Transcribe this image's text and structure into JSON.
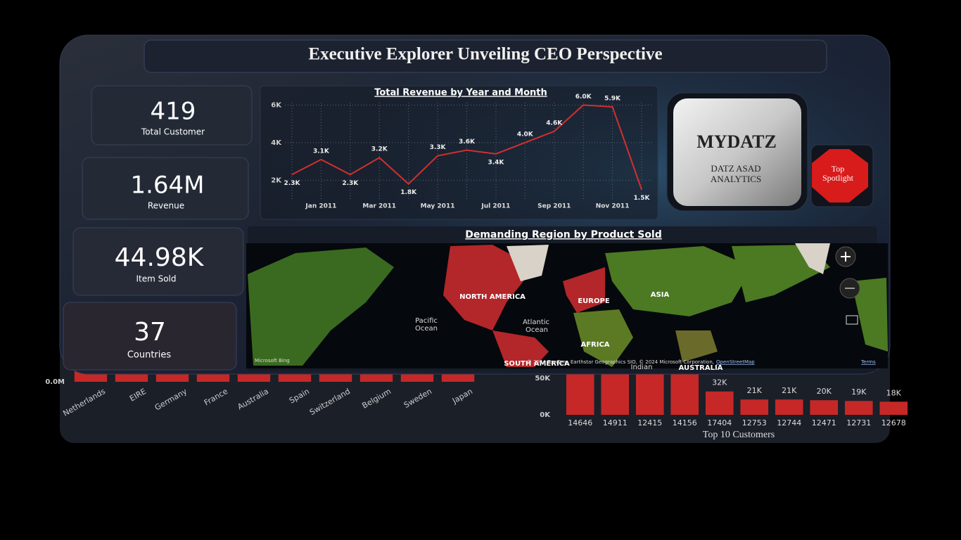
{
  "title": "Executive Explorer Unveiling CEO Perspective",
  "kpis": [
    {
      "value": "419",
      "label": "Total Customer"
    },
    {
      "value": "1.64M",
      "label": "Revenue"
    },
    {
      "value": "44.98K",
      "label": "Item Sold"
    },
    {
      "value": "37",
      "label": "Countries"
    }
  ],
  "brand": {
    "logo": "MYDATZ",
    "line1": "DATZ ASAD",
    "line2": "ANALYTICS"
  },
  "spotlight": {
    "line1": "Top",
    "line2": "Spotlight"
  },
  "map": {
    "title": "Demanding Region by Product Sold",
    "labels": [
      "NORTH AMERICA",
      "EUROPE",
      "ASIA",
      "AFRICA",
      "SOUTH AMERICA",
      "Pacific",
      "Ocean",
      "Atlantic",
      "Ocean",
      "Indian",
      "AUSTRALIA"
    ],
    "provider": "Microsoft Bing",
    "attribution": "© 2024 TomTom, Earthstar Geographics SIO, © 2024 Microsoft Corporation,",
    "osm": "OpenStreetMap",
    "terms": "Terms"
  },
  "chart_data": [
    {
      "type": "line",
      "title": "Total Revenue by Year and Month",
      "color": "#d32f2f",
      "grid": true,
      "categories": [
        null,
        "Jan 2011",
        null,
        "Mar 2011",
        null,
        "May 2011",
        null,
        "Jul 2011",
        null,
        "Sep 2011",
        null,
        "Nov 2011",
        null
      ],
      "values": [
        2300,
        3100,
        2300,
        3200,
        1800,
        3300,
        3600,
        3400,
        4000,
        4600,
        6000,
        5900,
        1500
      ],
      "value_labels": [
        "2.3K",
        "3.1K",
        "2.3K",
        "3.2K",
        "1.8K",
        "3.3K",
        "3.6K",
        "3.4K",
        "4.0K",
        "4.6K",
        "6.0K",
        "5.9K",
        "1.5K"
      ],
      "ylim": [
        1000,
        6500
      ],
      "yticks": [
        {
          "value": 2000,
          "label": "2K"
        },
        {
          "value": 4000,
          "label": "4K"
        },
        {
          "value": 6000,
          "label": "6K"
        }
      ]
    },
    {
      "type": "bar",
      "color": "#c62828",
      "categories": [
        "Netherlands",
        "EIRE",
        "Germany",
        "France",
        "Australia",
        "Spain",
        "Switzerland",
        "Belgium",
        "Sweden",
        "Japan"
      ],
      "values": [
        0.28,
        0.27,
        0.23,
        0.21,
        0.14,
        0.06,
        0.06,
        0.04,
        0.04,
        0.04
      ],
      "ylim": [
        0,
        0.3
      ],
      "yticks": [
        {
          "value": 0,
          "label": "0.0M"
        }
      ]
    },
    {
      "type": "bar",
      "title": "Top 10 Customers",
      "color": "#c62828",
      "categories": [
        "14646",
        "14911",
        "12415",
        "14156",
        "17404",
        "12753",
        "12744",
        "12471",
        "12731",
        "12678"
      ],
      "values": [
        280000,
        143000,
        124000,
        117000,
        32000,
        21000,
        21000,
        20000,
        19000,
        18000
      ],
      "value_labels": [
        null,
        null,
        null,
        null,
        "32K",
        "21K",
        "21K",
        "20K",
        "19K",
        "18K"
      ],
      "ylim": [
        0,
        300000
      ],
      "yticks": [
        {
          "value": 0,
          "label": "0K"
        },
        {
          "value": 50000,
          "label": "50K"
        }
      ]
    }
  ]
}
